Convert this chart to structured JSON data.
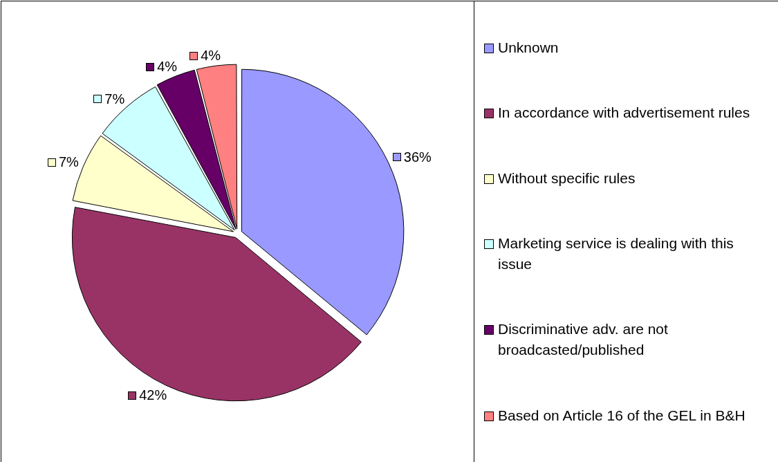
{
  "chart_data": {
    "type": "pie",
    "categories": [
      "Unknown",
      "In accordance with advertisement rules",
      "Without specific rules",
      "Marketing service is dealing with this issue",
      "Discriminative adv. are not broadcasted/published",
      "Based on Article 16 of the GEL in B&H"
    ],
    "values": [
      36,
      42,
      7,
      7,
      4,
      4
    ],
    "colors": [
      "#9999ff",
      "#993366",
      "#ffffcc",
      "#ccffff",
      "#660066",
      "#ff8080"
    ],
    "value_labels": [
      "36%",
      "42%",
      "7%",
      "7%",
      "4%",
      "4%"
    ],
    "legend": "right"
  }
}
